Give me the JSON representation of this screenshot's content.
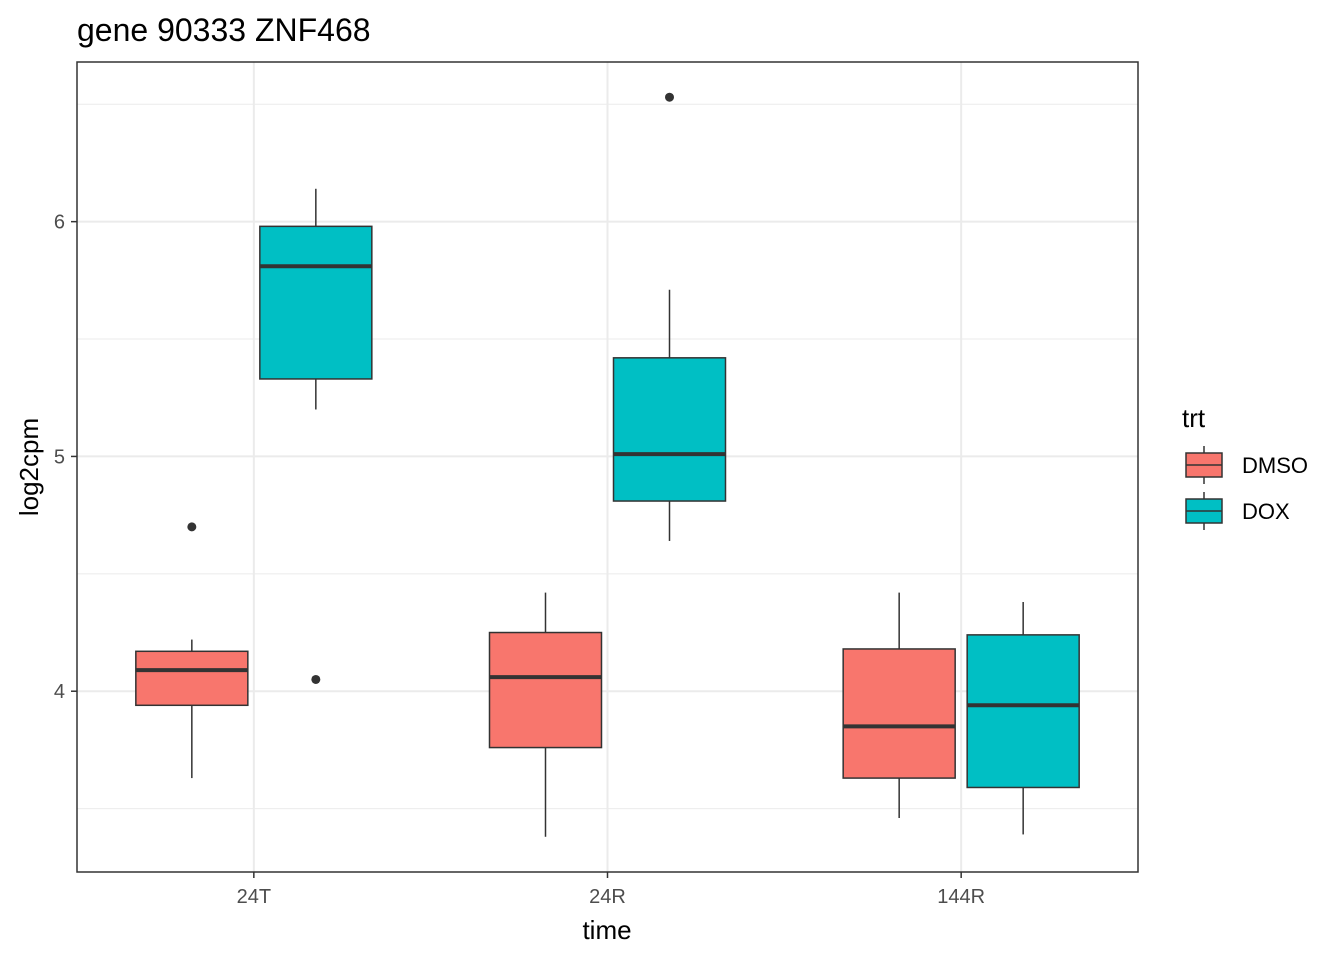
{
  "chart_data": {
    "type": "boxplot",
    "title": "gene 90333 ZNF468",
    "xlabel": "time",
    "ylabel": "log2cpm",
    "categories": [
      "24T",
      "24R",
      "144R"
    ],
    "ylim": [
      3.23,
      6.68
    ],
    "y_ticks": [
      4,
      5,
      6
    ],
    "y_minor_ticks": [
      3.5,
      4.5,
      5.5,
      6.5
    ],
    "grid": true,
    "legend": {
      "title": "trt",
      "position": "right",
      "entries": [
        {
          "name": "DMSO",
          "color": "#f8766d"
        },
        {
          "name": "DOX",
          "color": "#00bfc4"
        }
      ]
    },
    "series": [
      {
        "name": "DMSO",
        "color": "#f8766d",
        "boxes": [
          {
            "category": "24T",
            "whisker_low": 3.63,
            "q1": 3.94,
            "median": 4.09,
            "q3": 4.17,
            "whisker_high": 4.22,
            "outliers": [
              4.7
            ]
          },
          {
            "category": "24R",
            "whisker_low": 3.38,
            "q1": 3.76,
            "median": 4.06,
            "q3": 4.25,
            "whisker_high": 4.42,
            "outliers": []
          },
          {
            "category": "144R",
            "whisker_low": 3.46,
            "q1": 3.63,
            "median": 3.85,
            "q3": 4.18,
            "whisker_high": 4.42,
            "outliers": []
          }
        ]
      },
      {
        "name": "DOX",
        "color": "#00bfc4",
        "boxes": [
          {
            "category": "24T",
            "whisker_low": 5.2,
            "q1": 5.33,
            "median": 5.81,
            "q3": 5.98,
            "whisker_high": 6.14,
            "outliers": [
              4.05
            ]
          },
          {
            "category": "24R",
            "whisker_low": 4.64,
            "q1": 4.81,
            "median": 5.01,
            "q3": 5.42,
            "whisker_high": 5.71,
            "outliers": [
              6.53
            ]
          },
          {
            "category": "144R",
            "whisker_low": 3.39,
            "q1": 3.59,
            "median": 3.94,
            "q3": 4.24,
            "whisker_high": 4.38,
            "outliers": []
          }
        ]
      }
    ]
  }
}
